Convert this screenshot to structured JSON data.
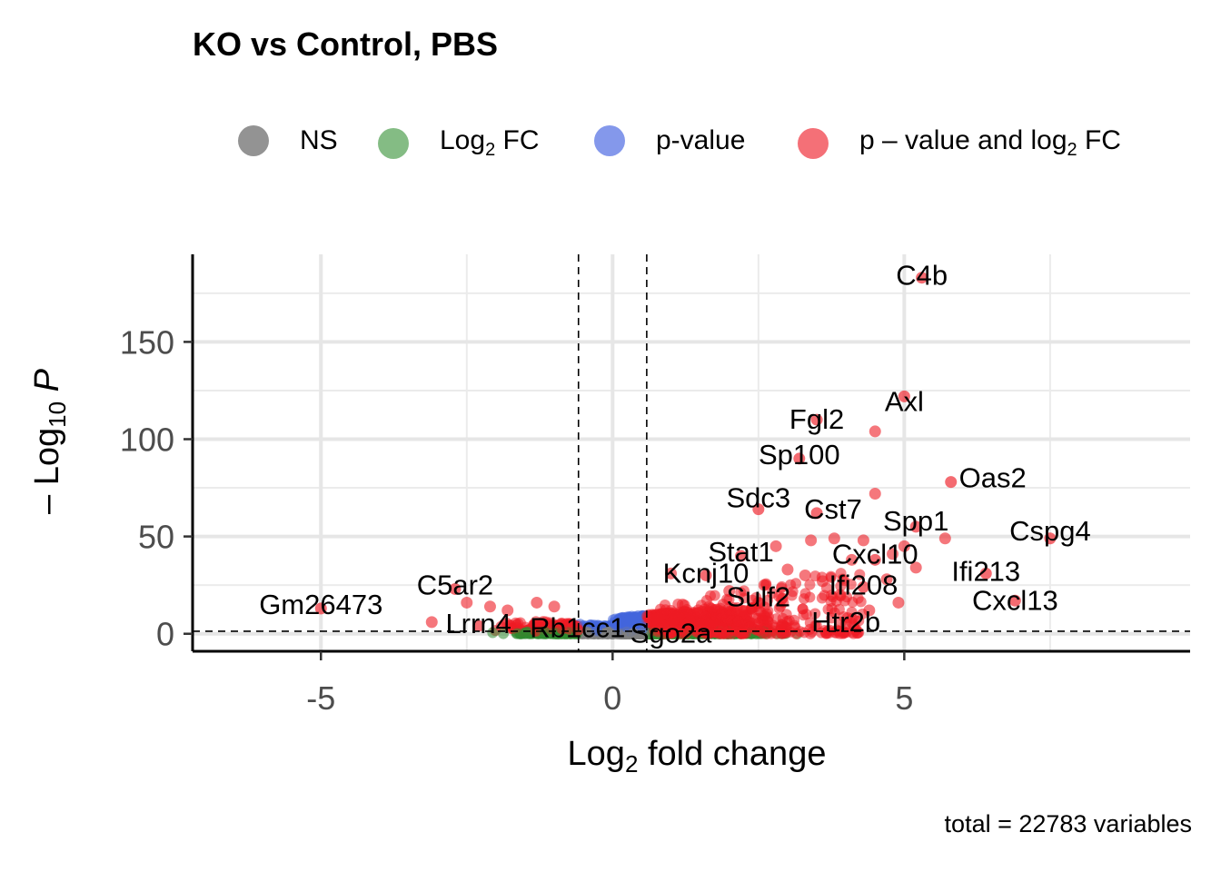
{
  "title": "KO vs Control, PBS",
  "legend": [
    {
      "label": "NS",
      "color": "#808080"
    },
    {
      "label": "Log",
      "sub": "2",
      "after": " FC",
      "color": "#5ba55b"
    },
    {
      "label": "p-value",
      "color": "#6f86e8"
    },
    {
      "label": "p – value and log",
      "sub": "2",
      "after": " FC",
      "color": "#f0404a"
    }
  ],
  "caption": "total = 22783 variables",
  "chart_data": {
    "type": "scatter",
    "title": "KO vs Control, PBS",
    "xlabel": "Log2 fold change",
    "ylabel": "–Log10 P",
    "xlim": [
      -7.2,
      9.9
    ],
    "ylim": [
      -9,
      195
    ],
    "xticks": [
      -5,
      0,
      5
    ],
    "xtick_labels": [
      "-5",
      "0",
      "5"
    ],
    "yticks": [
      0,
      50,
      100,
      150
    ],
    "ytick_labels": [
      "0",
      "50",
      "100",
      "150"
    ],
    "thresholds": {
      "fc": [
        -0.585,
        0.585
      ],
      "p": 1.3
    },
    "grid": true,
    "legend_position": "top",
    "colors": {
      "ns": "#808080",
      "fc": "#2f8a2f",
      "p": "#4466dd",
      "both": "#ee1c25"
    },
    "labeled_points": [
      {
        "gene": "C4b",
        "x": 5.3,
        "y": 183
      },
      {
        "gene": "Axl",
        "x": 5.0,
        "y": 122
      },
      {
        "gene": "Fgl2",
        "x": 3.5,
        "y": 110
      },
      {
        "gene": "Sp100",
        "x": 3.2,
        "y": 90
      },
      {
        "gene": "Oas2",
        "x": 5.8,
        "y": 78
      },
      {
        "gene": "Sdc3",
        "x": 2.5,
        "y": 64
      },
      {
        "gene": "Cst7",
        "x": 3.5,
        "y": 62
      },
      {
        "gene": "Spp1",
        "x": 5.2,
        "y": 55
      },
      {
        "gene": "Cspg4",
        "x": 7.5,
        "y": 49
      },
      {
        "gene": "Stat1",
        "x": 2.2,
        "y": 40
      },
      {
        "gene": "Cxcl10",
        "x": 4.5,
        "y": 38
      },
      {
        "gene": "Kcnj10",
        "x": 1.6,
        "y": 30
      },
      {
        "gene": "Ifi213",
        "x": 6.4,
        "y": 31
      },
      {
        "gene": "Ifi208",
        "x": 4.3,
        "y": 24
      },
      {
        "gene": "C5ar2",
        "x": -2.7,
        "y": 23
      },
      {
        "gene": "Cxcl13",
        "x": 6.9,
        "y": 17
      },
      {
        "gene": "Sulf2",
        "x": 2.5,
        "y": 16
      },
      {
        "gene": "Gm26473",
        "x": -5.0,
        "y": 13
      },
      {
        "gene": "Htr2b",
        "x": 4.0,
        "y": 5
      },
      {
        "gene": "Lrrn4",
        "x": -2.3,
        "y": 4
      },
      {
        "gene": "Rb1cc1",
        "x": -0.6,
        "y": 2
      },
      {
        "gene": "Sgo2a",
        "x": 1.0,
        "y": 1
      }
    ],
    "highlighted_points": [
      {
        "x": 4.5,
        "y": 104
      },
      {
        "x": 4.5,
        "y": 72
      },
      {
        "x": 5.7,
        "y": 49
      },
      {
        "x": 3.8,
        "y": 49
      },
      {
        "x": 4.3,
        "y": 48
      },
      {
        "x": 5.0,
        "y": 45
      },
      {
        "x": 2.8,
        "y": 45
      },
      {
        "x": 3.4,
        "y": 48
      },
      {
        "x": 4.8,
        "y": 41
      },
      {
        "x": 4.1,
        "y": 38
      },
      {
        "x": 3.0,
        "y": 33
      },
      {
        "x": 3.3,
        "y": 30
      },
      {
        "x": 3.6,
        "y": 27
      },
      {
        "x": 5.2,
        "y": 34
      },
      {
        "x": 4.7,
        "y": 28
      },
      {
        "x": 2.6,
        "y": 25
      },
      {
        "x": 1.0,
        "y": 31
      },
      {
        "x": 2.0,
        "y": 22
      },
      {
        "x": 2.9,
        "y": 18
      },
      {
        "x": 4.9,
        "y": 16
      },
      {
        "x": -2.1,
        "y": 14
      },
      {
        "x": -3.1,
        "y": 6
      },
      {
        "x": -1.3,
        "y": 16
      },
      {
        "x": -2.5,
        "y": 16
      },
      {
        "x": -1.8,
        "y": 12
      },
      {
        "x": -1.0,
        "y": 14
      },
      {
        "x": 1.2,
        "y": 15
      },
      {
        "x": 3.9,
        "y": 20
      },
      {
        "x": 2.2,
        "y": 12
      },
      {
        "x": 4.4,
        "y": 12
      }
    ]
  }
}
